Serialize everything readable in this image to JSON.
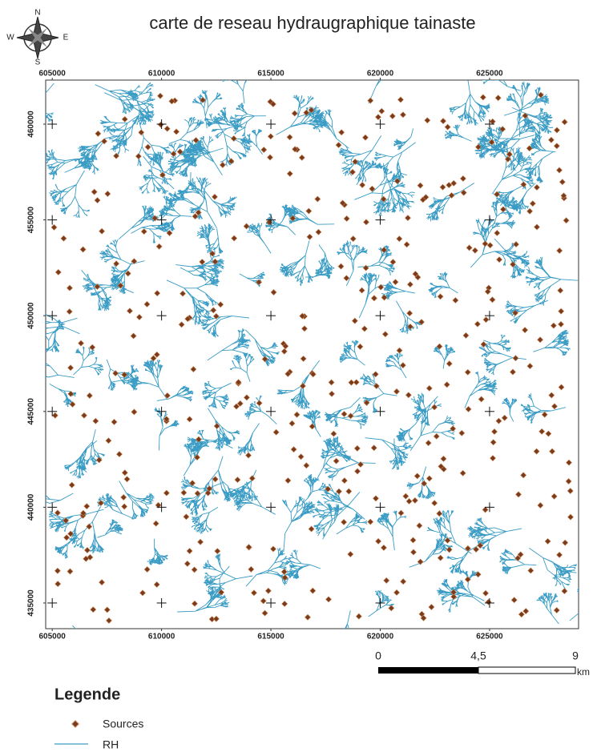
{
  "header": {
    "title": "carte de reseau hydraugraphique tainaste"
  },
  "compass": {
    "n": "N",
    "s": "S",
    "e": "E",
    "w": "W"
  },
  "map": {
    "xlim": [
      604700,
      629070
    ],
    "ylim": [
      433660,
      462300
    ],
    "x_ticks": [
      605000,
      610000,
      615000,
      620000,
      625000
    ],
    "y_ticks": [
      460000,
      455000,
      450000,
      445000,
      440000,
      435000
    ]
  },
  "scale_bar": {
    "labels": [
      "0",
      "4,5",
      "9"
    ],
    "unit": "km"
  },
  "legend": {
    "title": "Legende",
    "items": [
      "Sources",
      "RH"
    ]
  }
}
